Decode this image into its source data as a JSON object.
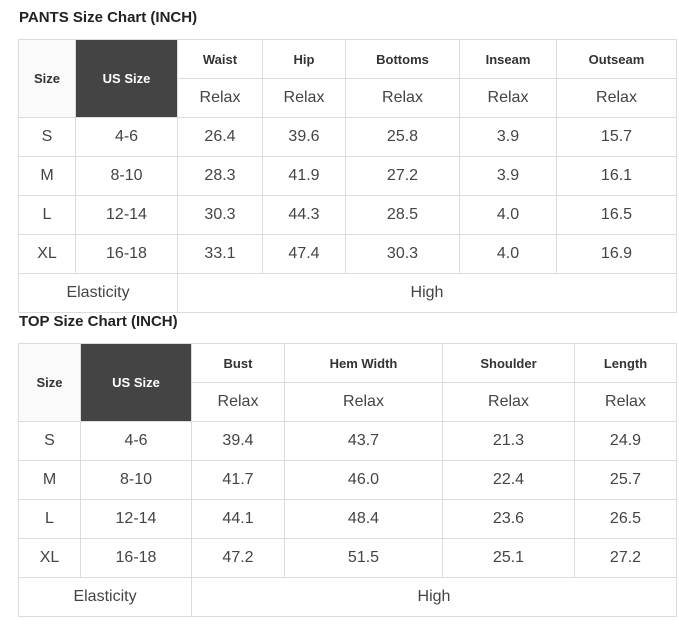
{
  "pants": {
    "title": "PANTS Size Chart (INCH)",
    "columns": [
      "Size",
      "US Size",
      "Waist",
      "Hip",
      "Bottoms",
      "Inseam",
      "Outseam"
    ],
    "subheader": [
      "Relax",
      "Relax",
      "Relax",
      "Relax",
      "Relax"
    ],
    "rows": [
      [
        "S",
        "4-6",
        "26.4",
        "39.6",
        "25.8",
        "3.9",
        "15.7"
      ],
      [
        "M",
        "8-10",
        "28.3",
        "41.9",
        "27.2",
        "3.9",
        "16.1"
      ],
      [
        "L",
        "12-14",
        "30.3",
        "44.3",
        "28.5",
        "4.0",
        "16.5"
      ],
      [
        "XL",
        "16-18",
        "33.1",
        "47.4",
        "30.3",
        "4.0",
        "16.9"
      ]
    ],
    "footer": [
      "Elasticity",
      "High"
    ]
  },
  "top": {
    "title": "TOP Size Chart (INCH)",
    "columns": [
      "Size",
      "US Size",
      "Bust",
      "Hem Width",
      "Shoulder",
      "Length"
    ],
    "subheader": [
      "Relax",
      "Relax",
      "Relax",
      "Relax"
    ],
    "rows": [
      [
        "S",
        "4-6",
        "39.4",
        "43.7",
        "21.3",
        "24.9"
      ],
      [
        "M",
        "8-10",
        "41.7",
        "46.0",
        "22.4",
        "25.7"
      ],
      [
        "L",
        "12-14",
        "44.1",
        "48.4",
        "23.6",
        "26.5"
      ],
      [
        "XL",
        "16-18",
        "47.2",
        "51.5",
        "25.1",
        "27.2"
      ]
    ],
    "footer": [
      "Elasticity",
      "High"
    ]
  }
}
